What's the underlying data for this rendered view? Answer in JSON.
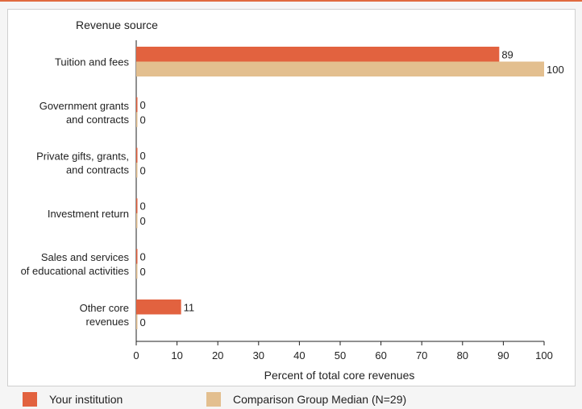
{
  "chart_data": {
    "type": "bar",
    "orientation": "horizontal",
    "category_axis_title": "Revenue source",
    "xlabel": "Percent of total core revenues",
    "xlim": [
      0,
      100
    ],
    "xticks": [
      0,
      10,
      20,
      30,
      40,
      50,
      60,
      70,
      80,
      90,
      100
    ],
    "categories": [
      [
        "Tuition and fees"
      ],
      [
        "Government grants",
        "and contracts"
      ],
      [
        "Private gifts, grants,",
        "and contracts"
      ],
      [
        "Investment return"
      ],
      [
        "Sales and services",
        "of educational activities"
      ],
      [
        "Other core",
        "revenues"
      ]
    ],
    "series": [
      {
        "name": "Your institution",
        "color": "#e2623f",
        "values": [
          89,
          0,
          0,
          0,
          0,
          11
        ]
      },
      {
        "name": "Comparison Group Median (N=29)",
        "color": "#e3bf8f",
        "values": [
          100,
          0,
          0,
          0,
          0,
          0
        ]
      }
    ],
    "grid": false,
    "legend_position": "bottom"
  }
}
